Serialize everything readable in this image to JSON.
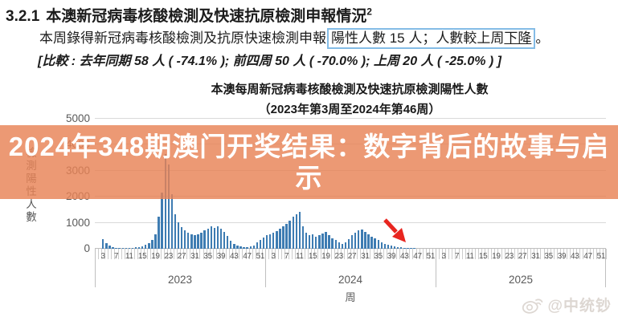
{
  "heading": {
    "number": "3.2.1",
    "text": "本澳新冠病毒核酸檢測及快速抗原檢測申報情況",
    "footnote": "2"
  },
  "summary": {
    "prefix": "本周錄得新冠病毒核酸檢測及抗原快速檢測申報",
    "highlight_main": "陽性人數 15 人；人數較上周",
    "highlight_underlined": "下降",
    "suffix": "。"
  },
  "comparison": "[比較 : 去年同期 58 人 ( -74.1% ); 前四周 50 人 ( -70.0% ); 上周 20 人 ( -25.0% ) ]",
  "banner": {
    "line1": "2024年348期澳门开奖结果：数字背后的故事与启",
    "line2": "示",
    "bg_color": "rgba(232,130,85,0.82)",
    "text_color": "#ffffff"
  },
  "watermark": {
    "icon": "weibo-logo",
    "handle": "@中统钞"
  },
  "chart_data": {
    "type": "bar",
    "title": "本澳每周新冠病毒核酸檢測及快速抗原檢測陽性人數",
    "subtitle": "（2023年第3周至2024年第46周）",
    "ylabel": "檢測陽性人數",
    "xlabel": "周",
    "ylim": [
      0,
      5000
    ],
    "yticks": [
      0,
      1000,
      2000,
      3000,
      4000,
      5000
    ],
    "grid": true,
    "bar_color": "#3e7cb2",
    "x_tick_labels": [
      3,
      7,
      11,
      15,
      19,
      23,
      27,
      31,
      35,
      39,
      43,
      47,
      51
    ],
    "weeks_per_year": 52,
    "year_sections": [
      "2023",
      "2024",
      "2025"
    ],
    "annotation": {
      "type": "arrow",
      "color": "#e8251f",
      "points_at": "2024 week 46 (value 15)"
    },
    "series": [
      {
        "name": "2023",
        "start_week": 3,
        "values": [
          380,
          230,
          120,
          70,
          45,
          30,
          25,
          30,
          35,
          45,
          55,
          70,
          95,
          140,
          210,
          330,
          560,
          1250,
          2150,
          3650,
          3250,
          2100,
          1320,
          1020,
          830,
          700,
          620,
          560,
          520,
          560,
          620,
          700,
          780,
          850,
          800,
          860,
          780,
          650,
          480,
          320,
          200,
          120,
          80,
          58,
          75,
          100,
          130,
          250,
          340,
          420
        ]
      },
      {
        "name": "2024",
        "start_week": 1,
        "values": [
          520,
          560,
          620,
          680,
          760,
          850,
          950,
          1080,
          1230,
          1330,
          1420,
          870,
          620,
          520,
          560,
          460,
          530,
          590,
          640,
          520,
          400,
          340,
          250,
          200,
          250,
          370,
          520,
          620,
          700,
          730,
          640,
          560,
          470,
          400,
          330,
          260,
          200,
          150,
          110,
          80,
          60,
          50,
          40,
          30,
          20,
          15
        ]
      },
      {
        "name": "2025",
        "start_week": 1,
        "values": []
      }
    ]
  }
}
